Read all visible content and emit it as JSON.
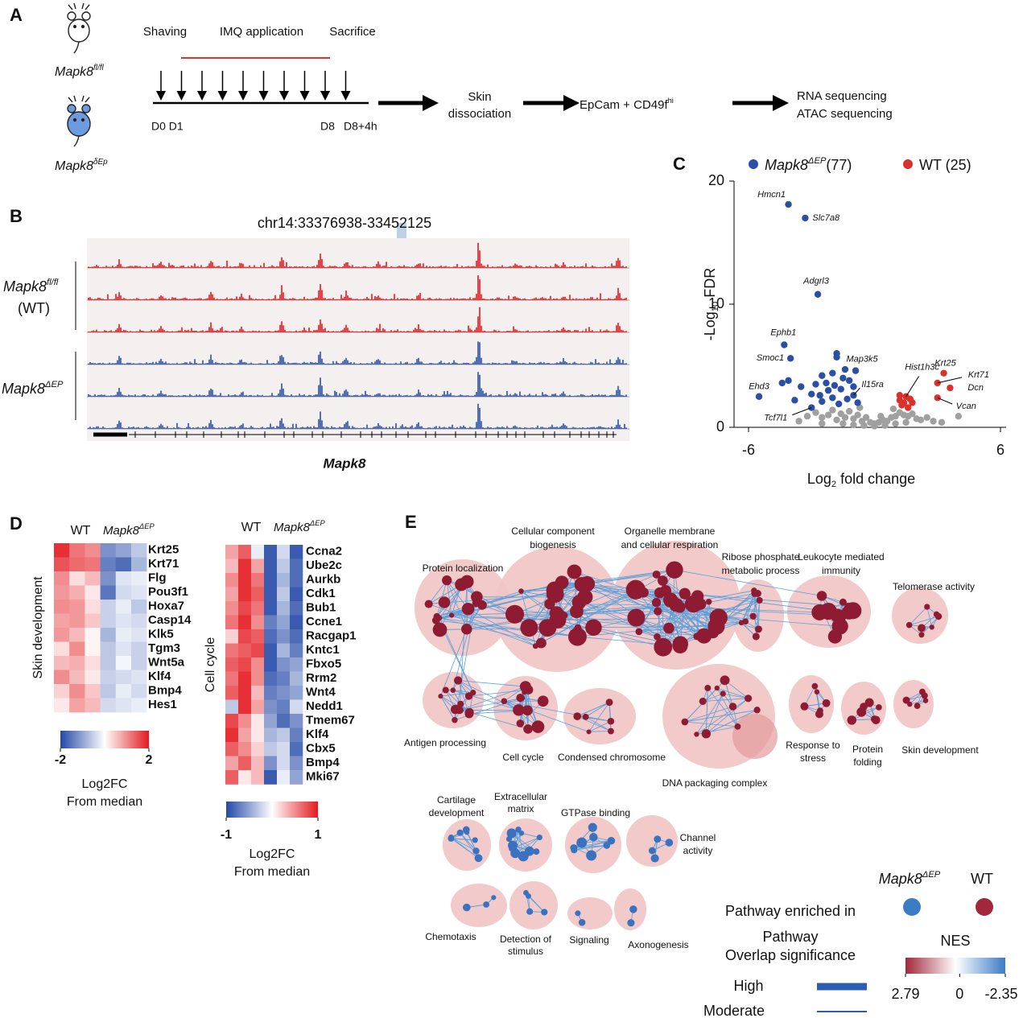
{
  "panel_a": {
    "label": "A",
    "mouse_wt": {
      "base": "Mapk8",
      "sup": "fl/fl",
      "italic": true
    },
    "mouse_ko": {
      "base": "Mapk8",
      "sup": "δEp",
      "italic": true
    },
    "steps": [
      "Shaving",
      "IMQ application",
      "Sacrifice"
    ],
    "days": [
      "D0 D1",
      "D8",
      "D8+4h"
    ],
    "dissociation": [
      "Skin",
      "dissociation"
    ],
    "sorting": {
      "base": "EpCam + CD49f",
      "sup": "hi"
    },
    "sequencing": [
      "RNA sequencing",
      "ATAC sequencing"
    ]
  },
  "panel_b": {
    "label": "B",
    "locus": "chr14:33376938-33452125",
    "group_wt": {
      "base": "Mapk8",
      "sup": "fl/fl",
      "italic": true
    },
    "group_wt_note": "(WT)",
    "group_ko": {
      "base": "Mapk8",
      "sup": "ΔEP",
      "italic": true
    },
    "gene": "Mapk8"
  },
  "chart_data": [
    {
      "type": "scatter",
      "label": "C",
      "xlabel": {
        "base": "Log",
        "sub": "2",
        "tail": " fold change"
      },
      "ylabel": {
        "base": "-Log",
        "sub": "10",
        "tail": " FDR"
      },
      "xlim": [
        -6,
        6
      ],
      "ylim": [
        0,
        20
      ],
      "xticks": [
        -6,
        6
      ],
      "yticks": [
        0,
        10,
        20
      ],
      "series": [
        {
          "name": {
            "base": "Mapk8",
            "sup": "ΔEP",
            "tail": "(77)",
            "italic": true
          },
          "color": "#2a4fa5",
          "x": [
            -4.1,
            -3.3,
            -2.7,
            -4.3,
            -4.0,
            -5.5,
            -0.9,
            -1.0,
            -3.0,
            -1.8,
            -1.8,
            -2.0,
            -2.5,
            -1.5,
            -1.2,
            -2.8,
            -3.5,
            -1.6,
            -2.2,
            -4.1,
            -3.8,
            -1.3,
            -2.0,
            -1.0,
            -2.5,
            -1.7,
            -3.0,
            -1.4,
            -2.3,
            -0.8,
            -1.9,
            -4.4,
            -2.6
          ],
          "values": [
            18.1,
            17.0,
            10.8,
            6.7,
            5.6,
            2.5,
            4.6,
            2.6,
            1.6,
            6.0,
            5.7,
            4.4,
            4.2,
            4.0,
            3.8,
            3.5,
            3.3,
            3.1,
            3.0,
            3.8,
            2.2,
            2.3,
            2.4,
            3.3,
            2.1,
            1.9,
            2.7,
            4.7,
            3.6,
            2.0,
            3.4,
            3.6,
            2.6
          ],
          "labels": [
            "Hmcn1",
            "Slc7a8",
            "Adgrl3",
            "Ephb1",
            "Smoc1",
            "Ehd3",
            "Map3k5",
            "Il15ra",
            "Tcf7l1",
            null,
            null,
            null,
            null,
            null,
            null,
            null,
            null,
            null,
            null,
            null,
            null,
            null,
            null,
            null,
            null,
            null,
            null,
            null,
            null,
            null,
            null,
            null,
            null
          ]
        },
        {
          "name": "WT (25)",
          "color": "#d9312b",
          "x": [
            1.5,
            3.3,
            3.0,
            3.6,
            3.0,
            1.2,
            1.4,
            1.7,
            1.3,
            1.6,
            1.2,
            1.8
          ],
          "values": [
            2.5,
            4.4,
            3.6,
            3.2,
            2.4,
            2.2,
            2.0,
            2.3,
            1.8,
            1.6,
            2.6,
            2.0
          ],
          "labels": [
            "Hist1h3c",
            "Krt25",
            "Krt71",
            "Dcn",
            "Vcan",
            null,
            null,
            null,
            null,
            null,
            null,
            null
          ]
        },
        {
          "color": "#a0a0a0",
          "x": [
            -3.2,
            -2.8,
            -2.5,
            -2.2,
            -2.0,
            -1.8,
            -1.6,
            -1.4,
            -1.2,
            -1.0,
            -0.8,
            -0.6,
            -0.4,
            -0.2,
            0,
            0.2,
            0.4,
            0.6,
            0.8,
            1.0,
            1.2,
            1.4,
            1.6,
            1.8,
            2.0,
            2.2,
            2.5,
            2.8,
            3.2,
            4.0,
            -1.5,
            -1.0,
            -0.5,
            0,
            0.5,
            1.0,
            1.5,
            -2.5,
            -3.6,
            -0.7,
            0.3,
            0.9
          ],
          "values": [
            0.9,
            1.2,
            0.8,
            1.0,
            1.4,
            0.6,
            1.1,
            0.8,
            1.3,
            0.7,
            1.0,
            0.5,
            0.8,
            0.4,
            0.3,
            0.4,
            0.6,
            0.5,
            0.8,
            0.9,
            1.2,
            1.0,
            0.9,
            1.1,
            0.7,
            0.6,
            0.8,
            0.5,
            0.4,
            0.9,
            0.3,
            0.2,
            0.15,
            0.1,
            0.15,
            0.3,
            0.4,
            0.3,
            0.5,
            1.6,
            0.9,
            1.5
          ]
        }
      ]
    },
    {
      "type": "heatmap",
      "label": "D",
      "column_groups": [
        "WT",
        {
          "base": "Mapk8",
          "sup": "ΔEP",
          "italic": true
        }
      ],
      "row_group": "Skin development",
      "rows": [
        "Krt25",
        "Krt71",
        "Flg",
        "Pou3f1",
        "Hoxa7",
        "Casp14",
        "Klk5",
        "Tgm3",
        "Wnt5a",
        "Klf4",
        "Bmp4",
        "Hes1"
      ],
      "values": [
        [
          1.8,
          1.2,
          1.0,
          -1.2,
          -1.0,
          -0.6
        ],
        [
          1.5,
          1.3,
          1.2,
          -1.4,
          -1.6,
          -0.8
        ],
        [
          1.0,
          0.3,
          0.6,
          -1.2,
          -0.3,
          -0.2
        ],
        [
          0.9,
          0.7,
          0.2,
          -1.5,
          -0.4,
          -0.3
        ],
        [
          1.0,
          0.9,
          0.3,
          -0.5,
          -0.2,
          -0.6
        ],
        [
          0.8,
          0.9,
          0.5,
          -0.5,
          -0.3,
          -0.4
        ],
        [
          0.9,
          0.6,
          0.1,
          -0.8,
          -0.2,
          -0.3
        ],
        [
          0.3,
          1.0,
          0.1,
          -0.6,
          -0.3,
          -0.5
        ],
        [
          0.6,
          0.7,
          0.3,
          -0.6,
          -0.1,
          -0.5
        ],
        [
          1.0,
          0.6,
          0.2,
          -0.5,
          -0.4,
          -0.3
        ],
        [
          0.4,
          1.0,
          0.5,
          -0.6,
          -0.2,
          -0.4
        ],
        [
          0.2,
          0.8,
          0.6,
          -0.4,
          -0.3,
          -0.2
        ]
      ],
      "zlim": [
        -2,
        2
      ],
      "colorbar_ticks": [
        -2,
        2
      ],
      "colorbar_label": [
        "Log2FC",
        "From median"
      ],
      "colors": [
        "#2448a6",
        "#ffffff",
        "#e3191f"
      ]
    },
    {
      "type": "heatmap",
      "column_groups": [
        "WT",
        {
          "base": "Mapk8",
          "sup": "ΔEP",
          "italic": true
        }
      ],
      "row_group": "Cell cycle",
      "rows": [
        "Ccna2",
        "Ube2c",
        "Aurkb",
        "Cdk1",
        "Bub1",
        "Ccne1",
        "Racgap1",
        "Kntc1",
        "Fbxo5",
        "Rrm2",
        "Wnt4",
        "Nedd1",
        "Tmem67",
        "Klf4",
        "Cbx5",
        "Bmp4",
        "Mki67"
      ],
      "values": [
        [
          0.4,
          0.7,
          -0.1,
          -0.9,
          -0.2,
          -0.9
        ],
        [
          0.3,
          0.9,
          0.4,
          -0.9,
          -0.3,
          -0.8
        ],
        [
          0.5,
          0.9,
          0.6,
          -0.9,
          -0.4,
          -0.8
        ],
        [
          0.4,
          0.9,
          0.7,
          -0.9,
          -0.3,
          -0.9
        ],
        [
          0.5,
          0.8,
          0.6,
          -0.9,
          -0.4,
          -0.8
        ],
        [
          0.6,
          0.9,
          0.5,
          -0.7,
          -0.5,
          -0.9
        ],
        [
          0.2,
          0.8,
          0.7,
          -0.8,
          -0.6,
          -0.8
        ],
        [
          0.6,
          0.7,
          0.8,
          -0.9,
          -0.4,
          -0.7
        ],
        [
          0.7,
          0.8,
          0.5,
          -0.9,
          -0.6,
          -0.5
        ],
        [
          0.6,
          0.9,
          0.5,
          -0.8,
          -0.7,
          -0.4
        ],
        [
          0.7,
          0.9,
          0.3,
          -0.7,
          -0.6,
          -0.5
        ],
        [
          -0.3,
          0.9,
          0.4,
          -0.6,
          -0.7,
          -0.2
        ],
        [
          0.8,
          0.5,
          0.1,
          -0.5,
          -0.8,
          -0.6
        ],
        [
          0.9,
          0.4,
          0.1,
          -0.4,
          -0.3,
          -0.7
        ],
        [
          0.7,
          0.5,
          0.2,
          -0.3,
          -0.2,
          -0.8
        ],
        [
          0.4,
          0.7,
          0.3,
          -0.6,
          -0.2,
          -0.6
        ],
        [
          0.7,
          0.1,
          0.3,
          -0.9,
          -0.1,
          -0.5
        ]
      ],
      "zlim": [
        -1,
        1
      ],
      "colorbar_ticks": [
        -1,
        1
      ],
      "colorbar_label": [
        "Log2FC",
        "From median"
      ],
      "colors": [
        "#2448a6",
        "#ffffff",
        "#e3191f"
      ]
    }
  ],
  "panel_e": {
    "label": "E",
    "clusters": [
      {
        "label": [
          "Protein localization"
        ],
        "color": "#8e1b32"
      },
      {
        "label": [
          "Cellular component",
          "biogenesis"
        ],
        "color": "#8e1b32"
      },
      {
        "label": [
          "Organelle membrane",
          "and cellular respiration"
        ],
        "color": "#8e1b32"
      },
      {
        "label": [
          "Ribose phosphate",
          "metabolic process"
        ],
        "color": "#8e1b32"
      },
      {
        "label": [
          "Leukocyte mediated",
          "immunity"
        ],
        "color": "#8e1b32"
      },
      {
        "label": [
          "Telomerase activity"
        ],
        "color": "#8e1b32"
      },
      {
        "label": [
          "Antigen processing"
        ],
        "color": "#8e1b32"
      },
      {
        "label": [
          "Cell cycle"
        ],
        "color": "#8e1b32"
      },
      {
        "label": [
          "Condensed chromosome"
        ],
        "color": "#8e1b32"
      },
      {
        "label": [
          "DNA packaging complex"
        ],
        "color": "#8e1b32"
      },
      {
        "label": [
          "Response to",
          "stress"
        ],
        "color": "#8e1b32"
      },
      {
        "label": [
          "Protein",
          "folding"
        ],
        "color": "#8e1b32"
      },
      {
        "label": [
          "Skin development"
        ],
        "color": "#8e1b32"
      },
      {
        "label": [
          "Cartilage",
          "development"
        ],
        "color": "#3a72bf"
      },
      {
        "label": [
          "Extracellular",
          "matrix"
        ],
        "color": "#3a72bf"
      },
      {
        "label": [
          "GTPase binding"
        ],
        "color": "#3a72bf"
      },
      {
        "label": [
          "Channel",
          "activity"
        ],
        "color": "#3a72bf"
      },
      {
        "label": [
          "Chemotaxis"
        ],
        "color": "#3a72bf"
      },
      {
        "label": [
          "Detection of",
          "stimulus"
        ],
        "color": "#3a72bf"
      },
      {
        "label": [
          "Signaling"
        ],
        "color": "#3a72bf"
      },
      {
        "label": [
          "Axonogenesis"
        ],
        "color": "#3a72bf"
      }
    ],
    "legend": {
      "groups": [
        {
          "name": {
            "base": "Mapk8",
            "sup": "ΔEP",
            "italic": true
          },
          "color": "#3b7cc4"
        },
        {
          "name": "WT",
          "color": "#a0283a"
        }
      ],
      "enriched_title": "Pathway enriched in",
      "overlap_title": [
        "Pathway",
        "Overlap significance"
      ],
      "overlap": [
        "High",
        "Moderate"
      ],
      "nes_title": "NES",
      "nes_ticks": [
        2.79,
        0,
        -2.35
      ],
      "nes_colors": [
        "#a0283a",
        "#ffffff",
        "#3b7cc4"
      ]
    }
  }
}
